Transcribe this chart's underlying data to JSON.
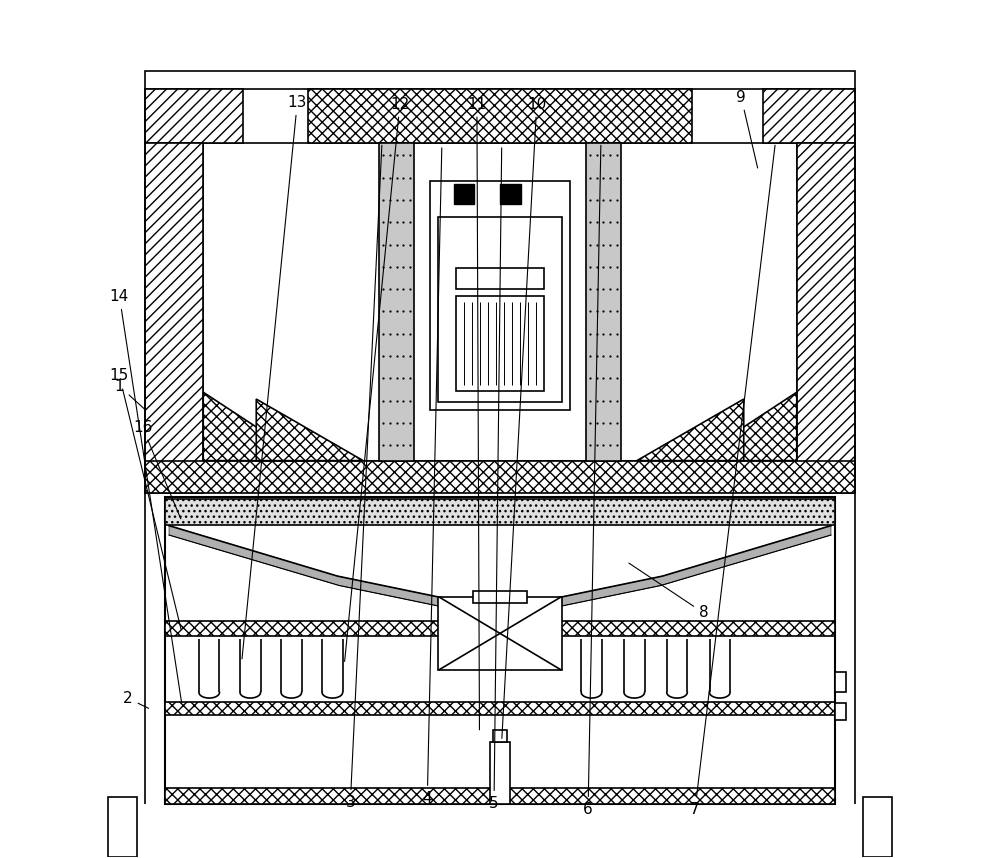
{
  "bg_color": "#ffffff",
  "line_color": "#000000",
  "label_positions": {
    "1": [
      0.055,
      0.55,
      0.088,
      0.52
    ],
    "2": [
      0.065,
      0.185,
      0.092,
      0.172
    ],
    "3": [
      0.325,
      0.063,
      0.362,
      0.835
    ],
    "4": [
      0.415,
      0.068,
      0.432,
      0.832
    ],
    "5": [
      0.493,
      0.062,
      0.502,
      0.832
    ],
    "6": [
      0.603,
      0.055,
      0.618,
      0.835
    ],
    "7": [
      0.728,
      0.055,
      0.822,
      0.835
    ],
    "8": [
      0.738,
      0.285,
      0.648,
      0.345
    ],
    "9": [
      0.782,
      0.888,
      0.802,
      0.802
    ],
    "10": [
      0.543,
      0.88,
      0.502,
      0.135
    ],
    "11": [
      0.473,
      0.88,
      0.476,
      0.145
    ],
    "12": [
      0.383,
      0.88,
      0.318,
      0.225
    ],
    "13": [
      0.263,
      0.882,
      0.198,
      0.228
    ],
    "14": [
      0.055,
      0.655,
      0.128,
      0.178
    ],
    "15": [
      0.055,
      0.562,
      0.128,
      0.262
    ],
    "16": [
      0.082,
      0.502,
      0.128,
      0.392
    ]
  }
}
